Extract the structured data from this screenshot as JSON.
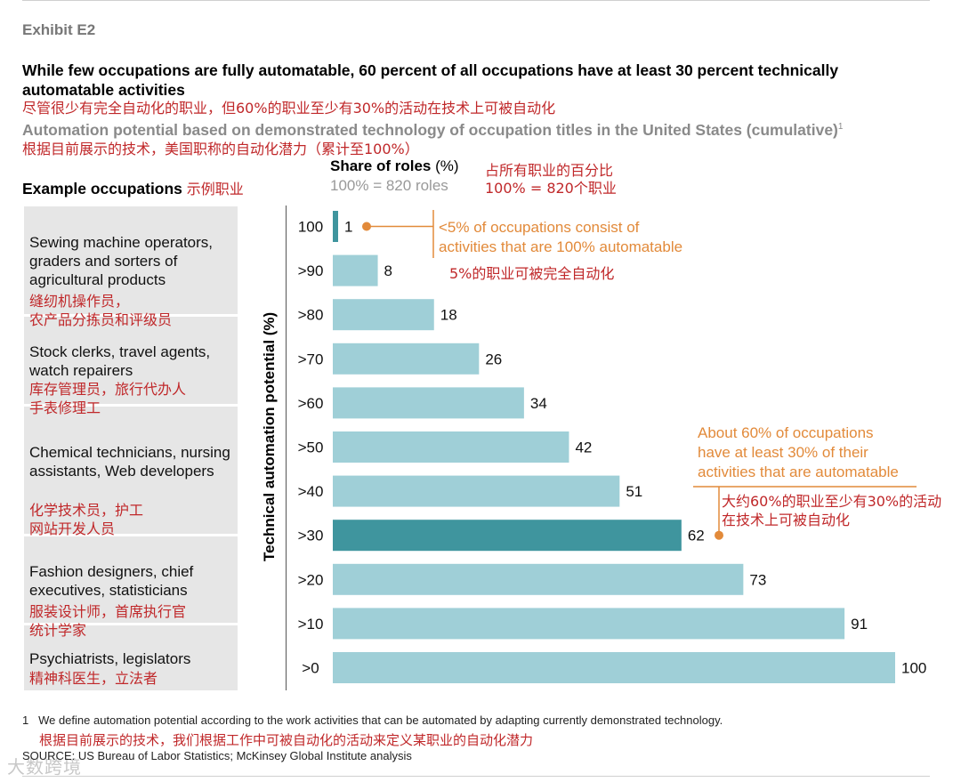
{
  "exhibit": "Exhibit E2",
  "title_en": "While few occupations are fully automatable, 60 percent of all occupations have at least 30 percent technically automatable activities",
  "title_cn": "尽管很少有完全自动化的职业，但60%的职业至少有30%的活动在技术上可被自动化",
  "subtitle_en": "Automation potential based on demonstrated technology of occupation titles in the United States (cumulative)",
  "subtitle_sup": "1",
  "subtitle_cn": "根据目前展示的技术，美国职称的自动化潜力（累计至100%）",
  "example_header_en": "Example occupations",
  "example_header_cn": "示例职业",
  "share_header": "Share of roles",
  "share_unit": "(%)",
  "share_sub": "100% = 820 roles",
  "share_cn1": "占所有职业的百分比",
  "share_cn2": "100% = 820个职业",
  "occupations": [
    {
      "en": "Sewing machine operators, graders and sorters of agricultural products",
      "cn": "缝纫机操作员，\n农产品分拣员和评级员"
    },
    {
      "en": "Stock clerks, travel agents, watch repairers",
      "cn": "库存管理员，旅行代办人\n手表修理工"
    },
    {
      "en": "Chemical technicians, nursing assistants, Web developers",
      "cn": "化学技术员，护工\n网站开发人员"
    },
    {
      "en": "Fashion designers, chief executives, statisticians",
      "cn": "服装设计师，首席执行官\n统计学家"
    },
    {
      "en": "Psychiatrists, legislators",
      "cn": "精神科医生，立法者"
    }
  ],
  "annotations": {
    "top_en": "<5% of occupations consist of\nactivities that are 100% automatable",
    "top_cn": "5%的职业可被完全自动化",
    "mid_en": "About 60% of occupations\nhave at least 30% of their\nactivities that are automatable",
    "mid_cn": "大约60%的职业至少有30%的活动\n在技术上可被自动化"
  },
  "footnote_1_num": "1",
  "footnote_1": "We define automation potential according to the work activities that can be automated by adapting currently demonstrated technology.",
  "footnote_cn": "根据目前展示的技术，我们根据工作中可被自动化的活动来定义某职业的自动化潜力",
  "source": "SOURCE: US Bureau of Labor Statistics; McKinsey Global Institute analysis",
  "watermark": "大数跨境",
  "colors": {
    "bar": "#9fcfd7",
    "highlight": "#3f959e",
    "accent": "#e28a3a",
    "cn_red": "#c0282a"
  },
  "chart_data": {
    "type": "bar",
    "orientation": "horizontal",
    "ylabel": "Technical automation potential (%)",
    "xlabel": "Share of roles (%)",
    "categories": [
      "100",
      ">90",
      ">80",
      ">70",
      ">60",
      ">50",
      ">40",
      ">30",
      ">20",
      ">10",
      ">0"
    ],
    "values": [
      1,
      8,
      18,
      26,
      34,
      42,
      51,
      62,
      73,
      91,
      100
    ],
    "highlight": [
      "100",
      ">30"
    ],
    "xlim": [
      0,
      100
    ]
  }
}
